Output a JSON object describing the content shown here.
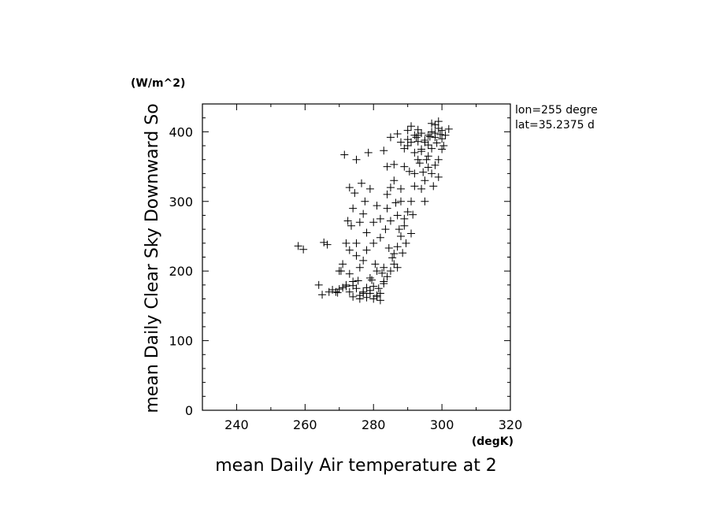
{
  "chart_data": {
    "type": "scatter",
    "marker": "+",
    "title": "",
    "xlabel": "mean Daily Air temperature at 2",
    "ylabel": "mean Daily Clear Sky Downward So",
    "xunit": "(degK)",
    "yunit": "(W/m^2)",
    "annotations": [
      "lon=255 degre",
      "lat=35.2375 d"
    ],
    "xlim": [
      230,
      320
    ],
    "ylim": [
      0,
      440
    ],
    "xticks": [
      240,
      260,
      280,
      300,
      320
    ],
    "yticks": [
      0,
      100,
      200,
      300,
      400
    ],
    "grid": false,
    "points": [
      [
        258,
        236
      ],
      [
        259.5,
        231
      ],
      [
        264,
        180
      ],
      [
        265,
        166
      ],
      [
        265.5,
        241
      ],
      [
        266.5,
        238
      ],
      [
        267,
        170
      ],
      [
        268,
        173
      ],
      [
        269,
        170
      ],
      [
        269.5,
        169
      ],
      [
        270,
        174
      ],
      [
        270.5,
        200
      ],
      [
        271,
        176
      ],
      [
        271.5,
        367
      ],
      [
        272,
        178
      ],
      [
        272.5,
        272
      ],
      [
        273,
        320
      ],
      [
        273,
        196
      ],
      [
        273.5,
        265
      ],
      [
        274,
        179
      ],
      [
        274,
        163
      ],
      [
        274.5,
        312
      ],
      [
        275,
        360
      ],
      [
        275,
        222
      ],
      [
        275.5,
        186
      ],
      [
        276,
        165
      ],
      [
        276,
        270
      ],
      [
        276.5,
        326
      ],
      [
        277,
        170
      ],
      [
        277,
        282
      ],
      [
        277.5,
        300
      ],
      [
        278,
        176
      ],
      [
        278,
        255
      ],
      [
        278.5,
        370
      ],
      [
        279,
        168
      ],
      [
        279,
        318
      ],
      [
        279.5,
        187
      ],
      [
        280,
        160
      ],
      [
        280,
        270
      ],
      [
        280.5,
        210
      ],
      [
        281,
        163
      ],
      [
        281,
        294
      ],
      [
        281.5,
        175
      ],
      [
        282,
        158
      ],
      [
        282,
        248
      ],
      [
        282.5,
        197
      ],
      [
        283,
        373
      ],
      [
        283,
        185
      ],
      [
        283.5,
        260
      ],
      [
        284,
        350
      ],
      [
        284,
        310
      ],
      [
        284.5,
        233
      ],
      [
        285,
        392
      ],
      [
        285,
        272
      ],
      [
        285.5,
        219
      ],
      [
        286,
        330
      ],
      [
        286,
        353
      ],
      [
        286.5,
        298
      ],
      [
        287,
        397
      ],
      [
        287,
        205
      ],
      [
        287.5,
        260
      ],
      [
        288,
        385
      ],
      [
        288,
        318
      ],
      [
        288.5,
        226
      ],
      [
        289,
        376
      ],
      [
        289,
        275
      ],
      [
        289.5,
        240
      ],
      [
        290,
        402
      ],
      [
        290,
        389
      ],
      [
        290.5,
        343
      ],
      [
        291,
        408
      ],
      [
        291,
        254
      ],
      [
        291.5,
        281
      ],
      [
        292,
        395
      ],
      [
        292,
        322
      ],
      [
        292.5,
        392
      ],
      [
        293,
        403
      ],
      [
        293,
        386
      ],
      [
        293.5,
        355
      ],
      [
        294,
        398
      ],
      [
        294,
        318
      ],
      [
        294.5,
        342
      ],
      [
        295,
        388
      ],
      [
        295,
        300
      ],
      [
        295.5,
        360
      ],
      [
        296,
        381
      ],
      [
        296,
        349
      ],
      [
        296.5,
        393
      ],
      [
        297,
        412
      ],
      [
        297,
        376
      ],
      [
        297.5,
        322
      ],
      [
        298,
        398
      ],
      [
        298,
        352
      ],
      [
        298.5,
        384
      ],
      [
        299,
        405
      ],
      [
        299,
        335
      ],
      [
        299.5,
        396
      ],
      [
        300,
        402
      ],
      [
        300,
        375
      ],
      [
        300.5,
        380
      ],
      [
        301,
        395
      ],
      [
        302,
        404
      ],
      [
        270,
        200
      ],
      [
        271,
        210
      ],
      [
        272,
        240
      ],
      [
        273,
        230
      ],
      [
        274,
        290
      ],
      [
        275,
        240
      ],
      [
        276,
        205
      ],
      [
        277,
        215
      ],
      [
        278,
        230
      ],
      [
        279,
        190
      ],
      [
        280,
        240
      ],
      [
        281,
        200
      ],
      [
        282,
        275
      ],
      [
        283,
        205
      ],
      [
        284,
        290
      ],
      [
        285,
        320
      ],
      [
        286,
        225
      ],
      [
        287,
        280
      ],
      [
        288,
        300
      ],
      [
        289,
        350
      ],
      [
        290,
        380
      ],
      [
        291,
        385
      ],
      [
        292,
        370
      ],
      [
        293,
        395
      ],
      [
        294,
        375
      ],
      [
        295,
        330
      ],
      [
        296,
        365
      ],
      [
        297,
        340
      ],
      [
        298,
        392
      ],
      [
        299,
        360
      ],
      [
        300,
        390
      ],
      [
        272,
        180
      ],
      [
        273,
        170
      ],
      [
        274,
        185
      ],
      [
        275,
        175
      ],
      [
        276,
        160
      ],
      [
        277,
        168
      ],
      [
        278,
        162
      ],
      [
        279,
        172
      ],
      [
        280,
        178
      ],
      [
        281,
        165
      ],
      [
        282,
        168
      ],
      [
        283,
        182
      ],
      [
        284,
        192
      ],
      [
        285,
        200
      ],
      [
        286,
        210
      ],
      [
        287,
        235
      ],
      [
        288,
        250
      ],
      [
        289,
        265
      ],
      [
        290,
        285
      ],
      [
        291,
        300
      ],
      [
        292,
        340
      ],
      [
        293,
        360
      ],
      [
        294,
        372
      ],
      [
        295,
        385
      ],
      [
        296,
        395
      ],
      [
        297,
        400
      ],
      [
        298,
        410
      ],
      [
        299,
        415
      ]
    ]
  }
}
